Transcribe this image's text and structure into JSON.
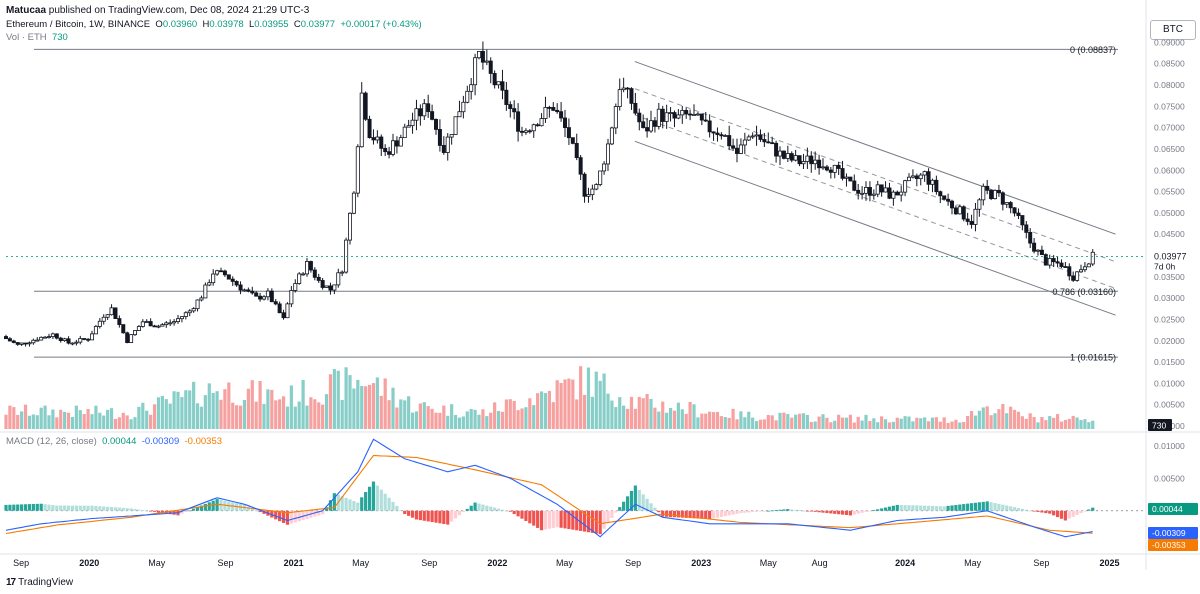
{
  "header": {
    "author": "Matucaa",
    "published_text": "published on TradingView.com, Dec 08, 2024 21:29 UTC-3"
  },
  "legend": {
    "pair": "Ethereum / Bitcoin, 1W, BINANCE",
    "open_label": "O",
    "open": "0.03960",
    "high_label": "H",
    "high": "0.03978",
    "low_label": "L",
    "low": "0.03955",
    "close_label": "C",
    "close": "0.03977",
    "change": "+0.00017 (+0.43%)",
    "vol_label": "Vol · ETH",
    "vol_value": "730",
    "macd_label": "MACD (12, 26, close)",
    "macd_hist": "0.00044",
    "macd_line": "-0.00309",
    "macd_signal": "-0.00353"
  },
  "currency_button": "BTC",
  "footer": {
    "logo": "17",
    "brand": "TradingView"
  },
  "colors": {
    "up": "#089981",
    "down": "#f23645",
    "macd": "#2962ff",
    "signal": "#f57c00",
    "hist_up": "#26a69a",
    "hist_down": "#ef5350"
  },
  "chart_data": {
    "type": "candlestick",
    "price_axis": {
      "ticks": [
        "0.09000",
        "0.08500",
        "0.08000",
        "0.07500",
        "0.07000",
        "0.06500",
        "0.06000",
        "0.05500",
        "0.05000",
        "0.04500",
        "0.04000",
        "0.03500",
        "0.03000",
        "0.02500",
        "0.02000",
        "0.01500",
        "0.01000",
        "0.00500",
        "0.00000"
      ],
      "tick_values": [
        0.09,
        0.085,
        0.08,
        0.075,
        0.07,
        0.065,
        0.06,
        0.055,
        0.05,
        0.045,
        0.04,
        0.035,
        0.03,
        0.025,
        0.02,
        0.015,
        0.01,
        0.005,
        0.0
      ],
      "ylim": [
        0.0,
        0.0915
      ]
    },
    "macd_axis": {
      "ticks": [
        "0.01000",
        "0.00500"
      ],
      "tick_values": [
        0.01,
        0.005
      ],
      "ylim": [
        -0.0065,
        0.0115
      ]
    },
    "current_price": {
      "label": "0.03977",
      "value": 0.03977,
      "countdown": "7d 0h"
    },
    "volume_badge": "730",
    "macd_badges": [
      {
        "label": "0.00044",
        "value": 0.00044
      },
      {
        "label": "-0.00309",
        "value": -0.00309
      },
      {
        "label": "-0.00353",
        "value": -0.00353
      }
    ],
    "time_axis": {
      "labels": [
        "Sep",
        "2020",
        "May",
        "Sep",
        "2021",
        "May",
        "Sep",
        "2022",
        "May",
        "Sep",
        "2023",
        "May",
        "Aug",
        "2024",
        "May",
        "Sep",
        "2025"
      ],
      "dates": [
        "2019-09-01",
        "2020-01-01",
        "2020-05-01",
        "2020-09-01",
        "2021-01-01",
        "2021-05-01",
        "2021-09-01",
        "2022-01-01",
        "2022-05-01",
        "2022-09-01",
        "2023-01-01",
        "2023-05-01",
        "2023-08-01",
        "2024-01-01",
        "2024-05-01",
        "2024-09-01",
        "2025-01-01"
      ]
    },
    "fib_levels": [
      {
        "label": "0 (0.08837)",
        "value": 0.08837
      },
      {
        "label": "0.786 (0.03160)",
        "value": 0.0316
      },
      {
        "label": "1 (0.01615)",
        "value": 0.01615
      }
    ],
    "channel": {
      "start_date": "2022-09-04",
      "end_date": "2025-01-12",
      "upper": [
        0.0855,
        0.045
      ],
      "lower": [
        0.0668,
        0.026
      ]
    },
    "price_path": [
      [
        "2019-08-05",
        0.021
      ],
      [
        "2019-09-02",
        0.019
      ],
      [
        "2019-10-07",
        0.0205
      ],
      [
        "2019-11-04",
        0.0215
      ],
      [
        "2019-12-02",
        0.0195
      ],
      [
        "2020-01-06",
        0.0205
      ],
      [
        "2020-02-03",
        0.026
      ],
      [
        "2020-02-17",
        0.0275
      ],
      [
        "2020-03-16",
        0.02
      ],
      [
        "2020-04-13",
        0.0245
      ],
      [
        "2020-05-11",
        0.0235
      ],
      [
        "2020-06-08",
        0.0245
      ],
      [
        "2020-07-06",
        0.027
      ],
      [
        "2020-07-27",
        0.0305
      ],
      [
        "2020-08-17",
        0.036
      ],
      [
        "2020-09-07",
        0.0355
      ],
      [
        "2020-10-05",
        0.0325
      ],
      [
        "2020-11-02",
        0.03
      ],
      [
        "2020-11-23",
        0.031
      ],
      [
        "2020-12-21",
        0.025
      ],
      [
        "2021-01-04",
        0.032
      ],
      [
        "2021-02-01",
        0.038
      ],
      [
        "2021-02-22",
        0.034
      ],
      [
        "2021-03-15",
        0.032
      ],
      [
        "2021-04-05",
        0.037
      ],
      [
        "2021-04-26",
        0.056
      ],
      [
        "2021-05-10",
        0.078
      ],
      [
        "2021-05-24",
        0.069
      ],
      [
        "2021-06-21",
        0.064
      ],
      [
        "2021-07-19",
        0.068
      ],
      [
        "2021-08-09",
        0.072
      ],
      [
        "2021-09-06",
        0.075
      ],
      [
        "2021-10-04",
        0.065
      ],
      [
        "2021-10-25",
        0.072
      ],
      [
        "2021-11-22",
        0.082
      ],
      [
        "2021-12-06",
        0.087
      ],
      [
        "2021-12-27",
        0.082
      ],
      [
        "2022-01-24",
        0.076
      ],
      [
        "2022-02-21",
        0.069
      ],
      [
        "2022-03-21",
        0.072
      ],
      [
        "2022-04-18",
        0.075
      ],
      [
        "2022-05-16",
        0.068
      ],
      [
        "2022-06-13",
        0.055
      ],
      [
        "2022-07-04",
        0.056
      ],
      [
        "2022-07-25",
        0.066
      ],
      [
        "2022-08-15",
        0.08
      ],
      [
        "2022-09-05",
        0.076
      ],
      [
        "2022-09-26",
        0.069
      ],
      [
        "2022-10-24",
        0.073
      ],
      [
        "2022-11-21",
        0.072
      ],
      [
        "2022-12-19",
        0.073
      ],
      [
        "2023-01-16",
        0.07
      ],
      [
        "2023-02-13",
        0.069
      ],
      [
        "2023-03-13",
        0.064
      ],
      [
        "2023-04-10",
        0.069
      ],
      [
        "2023-05-08",
        0.066
      ],
      [
        "2023-06-05",
        0.063
      ],
      [
        "2023-07-03",
        0.062
      ],
      [
        "2023-07-31",
        0.0625
      ],
      [
        "2023-08-28",
        0.061
      ],
      [
        "2023-09-25",
        0.057
      ],
      [
        "2023-10-23",
        0.055
      ],
      [
        "2023-11-20",
        0.0555
      ],
      [
        "2023-12-18",
        0.054
      ],
      [
        "2024-01-15",
        0.057
      ],
      [
        "2024-02-12",
        0.059
      ],
      [
        "2024-03-11",
        0.054
      ],
      [
        "2024-04-08",
        0.051
      ],
      [
        "2024-05-06",
        0.048
      ],
      [
        "2024-05-27",
        0.055
      ],
      [
        "2024-06-24",
        0.054
      ],
      [
        "2024-07-22",
        0.05
      ],
      [
        "2024-08-19",
        0.043
      ],
      [
        "2024-09-16",
        0.0385
      ],
      [
        "2024-10-14",
        0.038
      ],
      [
        "2024-11-04",
        0.035
      ],
      [
        "2024-11-25",
        0.038
      ],
      [
        "2024-12-08",
        0.0398
      ]
    ],
    "volume_profile": [
      [
        "2019-08-05",
        0.2
      ],
      [
        "2020-03-16",
        0.18
      ],
      [
        "2020-08-17",
        0.45
      ],
      [
        "2020-12-21",
        0.35
      ],
      [
        "2021-02-22",
        0.45
      ],
      [
        "2021-05-10",
        0.55
      ],
      [
        "2021-08-09",
        0.25
      ],
      [
        "2021-12-06",
        0.18
      ],
      [
        "2022-06-13",
        0.55
      ],
      [
        "2022-09-05",
        0.3
      ],
      [
        "2023-03-13",
        0.15
      ],
      [
        "2023-08-28",
        0.12
      ],
      [
        "2024-04-08",
        0.1
      ],
      [
        "2024-05-27",
        0.25
      ],
      [
        "2024-08-19",
        0.12
      ],
      [
        "2024-12-08",
        0.12
      ]
    ],
    "macd_path": [
      [
        "2019-08-05",
        -0.003
      ],
      [
        "2019-10-07",
        -0.002
      ],
      [
        "2020-01-06",
        -0.0012
      ],
      [
        "2020-03-16",
        -0.0008
      ],
      [
        "2020-06-08",
        -0.0003
      ],
      [
        "2020-08-17",
        0.002
      ],
      [
        "2020-10-05",
        0.001
      ],
      [
        "2020-12-21",
        -0.0015
      ],
      [
        "2021-02-22",
        0.0
      ],
      [
        "2021-04-26",
        0.006
      ],
      [
        "2021-05-24",
        0.011
      ],
      [
        "2021-07-19",
        0.008
      ],
      [
        "2021-10-04",
        0.006
      ],
      [
        "2021-11-22",
        0.007
      ],
      [
        "2022-01-24",
        0.005
      ],
      [
        "2022-04-18",
        0.001
      ],
      [
        "2022-07-04",
        -0.004
      ],
      [
        "2022-09-05",
        0.001
      ],
      [
        "2022-10-24",
        -0.001
      ],
      [
        "2023-01-16",
        -0.002
      ],
      [
        "2023-06-05",
        -0.002
      ],
      [
        "2023-09-25",
        -0.003
      ],
      [
        "2023-12-18",
        -0.0015
      ],
      [
        "2024-03-11",
        -0.001
      ],
      [
        "2024-05-27",
        0.0
      ],
      [
        "2024-08-19",
        -0.0025
      ],
      [
        "2024-10-14",
        -0.004
      ],
      [
        "2024-12-08",
        -0.0031
      ]
    ],
    "signal_path": [
      [
        "2019-08-05",
        -0.0035
      ],
      [
        "2019-11-04",
        -0.0022
      ],
      [
        "2020-03-16",
        -0.001
      ],
      [
        "2020-08-17",
        0.001
      ],
      [
        "2020-12-21",
        -0.0003
      ],
      [
        "2021-03-15",
        0.0005
      ],
      [
        "2021-05-24",
        0.0085
      ],
      [
        "2021-08-09",
        0.0082
      ],
      [
        "2021-11-22",
        0.0063
      ],
      [
        "2022-03-21",
        0.004
      ],
      [
        "2022-07-04",
        -0.002
      ],
      [
        "2022-10-24",
        -0.0005
      ],
      [
        "2023-03-13",
        -0.0018
      ],
      [
        "2023-09-25",
        -0.0026
      ],
      [
        "2024-01-15",
        -0.0018
      ],
      [
        "2024-05-27",
        -0.0008
      ],
      [
        "2024-09-16",
        -0.003
      ],
      [
        "2024-12-08",
        -0.0035
      ]
    ]
  }
}
